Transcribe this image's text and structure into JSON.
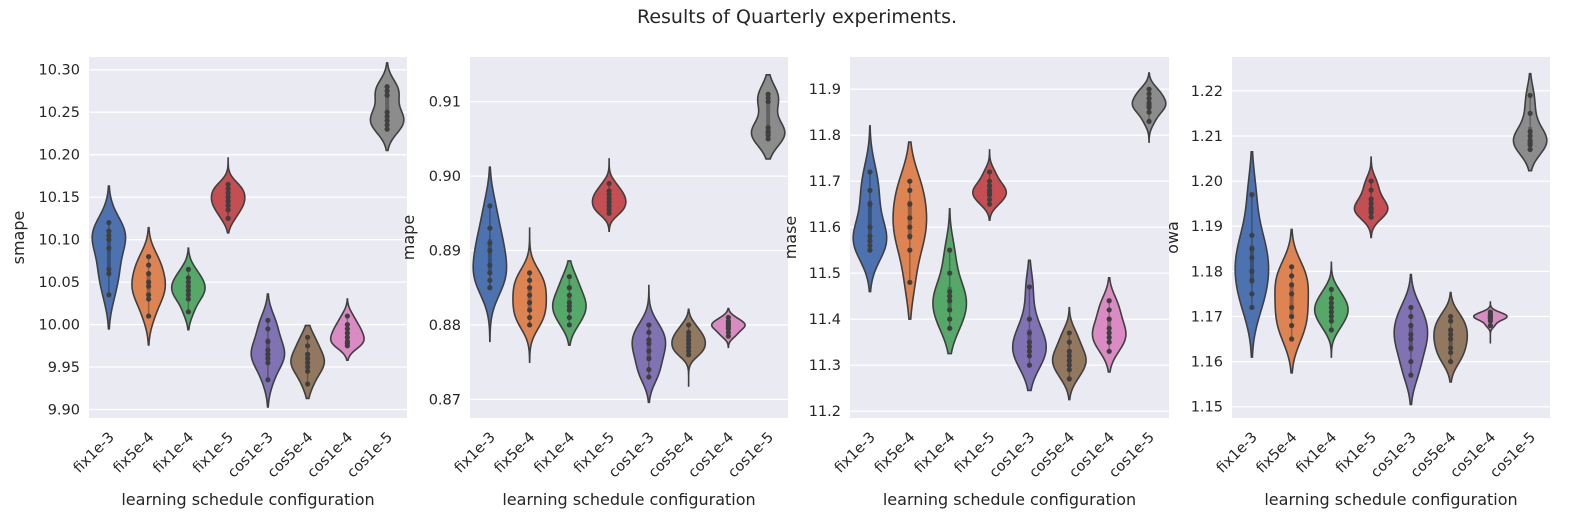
{
  "suptitle": "Results of Quarterly experiments.",
  "palette": [
    "#4c72b0",
    "#dd8452",
    "#55a868",
    "#c44e52",
    "#8172b3",
    "#937860",
    "#da8bc3",
    "#8c8c8c"
  ],
  "chart_data": [
    {
      "type": "violin",
      "categories": [
        "fix1e-3",
        "fix5e-4",
        "fix1e-4",
        "fix1e-5",
        "cos1e-3",
        "cos5e-4",
        "cos1e-4",
        "cos1e-5"
      ],
      "xlabel": "learning schedule configuration",
      "ylabel": "smape",
      "ylim": [
        9.89,
        10.315
      ],
      "yticks": [
        9.9,
        9.95,
        10.0,
        10.05,
        10.1,
        10.15,
        10.2,
        10.25,
        10.3
      ],
      "ytick_labels": [
        "9.90",
        "9.95",
        "10.00",
        "10.05",
        "10.10",
        "10.15",
        "10.20",
        "10.25",
        "10.30"
      ],
      "grid": true,
      "series": [
        {
          "values": [
            10.035,
            10.06,
            10.065,
            10.09,
            10.11,
            10.12,
            10.105,
            10.1
          ],
          "range": [
            9.995,
            10.163
          ]
        },
        {
          "values": [
            10.01,
            10.03,
            10.035,
            10.05,
            10.06,
            10.07,
            10.08,
            10.045
          ],
          "range": [
            9.976,
            10.114
          ]
        },
        {
          "values": [
            10.015,
            10.03,
            10.04,
            10.045,
            10.055,
            10.065,
            10.05,
            10.035
          ],
          "range": [
            9.994,
            10.09
          ]
        },
        {
          "values": [
            10.125,
            10.135,
            10.14,
            10.145,
            10.15,
            10.16,
            10.165,
            10.155
          ],
          "range": [
            10.108,
            10.196
          ]
        },
        {
          "values": [
            9.935,
            9.955,
            9.96,
            9.97,
            9.98,
            9.995,
            10.005,
            9.965
          ],
          "range": [
            9.903,
            10.036
          ]
        },
        {
          "values": [
            9.93,
            9.945,
            9.955,
            9.96,
            9.965,
            9.975,
            9.985,
            9.95
          ],
          "range": [
            9.913,
            9.999
          ]
        },
        {
          "values": [
            9.975,
            9.98,
            9.985,
            9.99,
            9.995,
            10.0,
            10.01,
            9.978
          ],
          "range": [
            9.958,
            10.03
          ]
        },
        {
          "values": [
            10.23,
            10.235,
            10.24,
            10.245,
            10.25,
            10.27,
            10.275,
            10.28
          ],
          "range": [
            10.205,
            10.308
          ]
        }
      ]
    },
    {
      "type": "violin",
      "categories": [
        "fix1e-3",
        "fix5e-4",
        "fix1e-4",
        "fix1e-5",
        "cos1e-3",
        "cos5e-4",
        "cos1e-4",
        "cos1e-5"
      ],
      "xlabel": "learning schedule configuration",
      "ylabel": "mape",
      "ylim": [
        0.8675,
        0.916
      ],
      "yticks": [
        0.87,
        0.88,
        0.89,
        0.9,
        0.91
      ],
      "ytick_labels": [
        "0.87",
        "0.88",
        "0.89",
        "0.90",
        "0.91"
      ],
      "grid": true,
      "series": [
        {
          "values": [
            0.885,
            0.887,
            0.888,
            0.89,
            0.891,
            0.893,
            0.896,
            0.886
          ],
          "range": [
            0.8778,
            0.9012
          ]
        },
        {
          "values": [
            0.881,
            0.882,
            0.883,
            0.884,
            0.885,
            0.886,
            0.887,
            0.88
          ],
          "range": [
            0.875,
            0.893
          ]
        },
        {
          "values": [
            0.881,
            0.882,
            0.883,
            0.884,
            0.885,
            0.8865,
            0.88,
            0.8825
          ],
          "range": [
            0.8773,
            0.8886
          ]
        },
        {
          "values": [
            0.895,
            0.896,
            0.897,
            0.898,
            0.899,
            0.8955,
            0.8965,
            0.8975
          ],
          "range": [
            0.8926,
            0.9023
          ]
        },
        {
          "values": [
            0.873,
            0.874,
            0.8765,
            0.878,
            0.879,
            0.88,
            0.8775,
            0.8755
          ],
          "range": [
            0.8696,
            0.8853
          ]
        },
        {
          "values": [
            0.876,
            0.877,
            0.878,
            0.879,
            0.88,
            0.8775,
            0.8785,
            0.8765
          ],
          "range": [
            0.8718,
            0.8821
          ]
        },
        {
          "values": [
            0.879,
            0.88,
            0.881,
            0.8795,
            0.8805,
            0.8785,
            0.8798,
            0.8802
          ],
          "range": [
            0.877,
            0.8822
          ]
        },
        {
          "values": [
            0.905,
            0.906,
            0.9055,
            0.9065,
            0.91,
            0.911,
            0.9058,
            0.9105
          ],
          "range": [
            0.9023,
            0.9136
          ]
        }
      ]
    },
    {
      "type": "violin",
      "categories": [
        "fix1e-3",
        "fix5e-4",
        "fix1e-4",
        "fix1e-5",
        "cos1e-3",
        "cos5e-4",
        "cos1e-4",
        "cos1e-5"
      ],
      "xlabel": "learning schedule configuration",
      "ylabel": "mase",
      "ylim": [
        11.185,
        11.97
      ],
      "yticks": [
        11.2,
        11.3,
        11.4,
        11.5,
        11.6,
        11.7,
        11.8,
        11.9
      ],
      "ytick_labels": [
        "11.2",
        "11.3",
        "11.4",
        "11.5",
        "11.6",
        "11.7",
        "11.8",
        "11.9"
      ],
      "grid": true,
      "series": [
        {
          "values": [
            11.55,
            11.57,
            11.58,
            11.6,
            11.65,
            11.68,
            11.72,
            11.56
          ],
          "range": [
            11.46,
            11.82
          ]
        },
        {
          "values": [
            11.48,
            11.55,
            11.6,
            11.62,
            11.65,
            11.68,
            11.7,
            11.58
          ],
          "range": [
            11.4,
            11.785
          ]
        },
        {
          "values": [
            11.38,
            11.4,
            11.42,
            11.45,
            11.46,
            11.5,
            11.55,
            11.44
          ],
          "range": [
            11.325,
            11.64
          ]
        },
        {
          "values": [
            11.65,
            11.66,
            11.67,
            11.68,
            11.69,
            11.7,
            11.72,
            11.675
          ],
          "range": [
            11.615,
            11.768
          ]
        },
        {
          "values": [
            11.3,
            11.32,
            11.33,
            11.34,
            11.35,
            11.37,
            11.4,
            11.47
          ],
          "range": [
            11.245,
            11.528
          ]
        },
        {
          "values": [
            11.27,
            11.29,
            11.3,
            11.31,
            11.33,
            11.35,
            11.37,
            11.32
          ],
          "range": [
            11.225,
            11.425
          ]
        },
        {
          "values": [
            11.33,
            11.35,
            11.36,
            11.37,
            11.38,
            11.4,
            11.42,
            11.44
          ],
          "range": [
            11.285,
            11.49
          ]
        },
        {
          "values": [
            11.83,
            11.85,
            11.86,
            11.87,
            11.88,
            11.89,
            11.9,
            11.865
          ],
          "range": [
            11.785,
            11.935
          ]
        }
      ]
    },
    {
      "type": "violin",
      "categories": [
        "fix1e-3",
        "fix5e-4",
        "fix1e-4",
        "fix1e-5",
        "cos1e-3",
        "cos5e-4",
        "cos1e-4",
        "cos1e-5"
      ],
      "xlabel": "learning schedule configuration",
      "ylabel": "owa",
      "ylim": [
        1.1475,
        1.2275
      ],
      "yticks": [
        1.15,
        1.16,
        1.17,
        1.18,
        1.19,
        1.2,
        1.21,
        1.22
      ],
      "ytick_labels": [
        "1.15",
        "1.16",
        "1.17",
        "1.18",
        "1.19",
        "1.20",
        "1.21",
        "1.22"
      ],
      "grid": true,
      "series": [
        {
          "values": [
            1.172,
            1.175,
            1.178,
            1.18,
            1.183,
            1.185,
            1.188,
            1.197
          ],
          "range": [
            1.161,
            1.2065
          ]
        },
        {
          "values": [
            1.165,
            1.168,
            1.172,
            1.175,
            1.177,
            1.179,
            1.181,
            1.17
          ],
          "range": [
            1.1575,
            1.1893
          ]
        },
        {
          "values": [
            1.167,
            1.169,
            1.171,
            1.173,
            1.174,
            1.176,
            1.17,
            1.172
          ],
          "range": [
            1.161,
            1.182
          ]
        },
        {
          "values": [
            1.192,
            1.193,
            1.194,
            1.195,
            1.196,
            1.198,
            1.2,
            1.1935
          ],
          "range": [
            1.1875,
            1.2053
          ]
        },
        {
          "values": [
            1.157,
            1.16,
            1.163,
            1.165,
            1.166,
            1.168,
            1.17,
            1.172
          ],
          "range": [
            1.1505,
            1.1793
          ]
        },
        {
          "values": [
            1.16,
            1.162,
            1.163,
            1.165,
            1.166,
            1.167,
            1.169,
            1.17
          ],
          "range": [
            1.1555,
            1.1753
          ]
        },
        {
          "values": [
            1.168,
            1.169,
            1.1695,
            1.17,
            1.1705,
            1.171,
            1.1698,
            1.1702
          ],
          "range": [
            1.1642,
            1.1732
          ]
        },
        {
          "values": [
            1.207,
            1.208,
            1.209,
            1.21,
            1.211,
            1.215,
            1.219,
            1.2085
          ],
          "range": [
            1.2023,
            1.2238
          ]
        }
      ]
    }
  ]
}
